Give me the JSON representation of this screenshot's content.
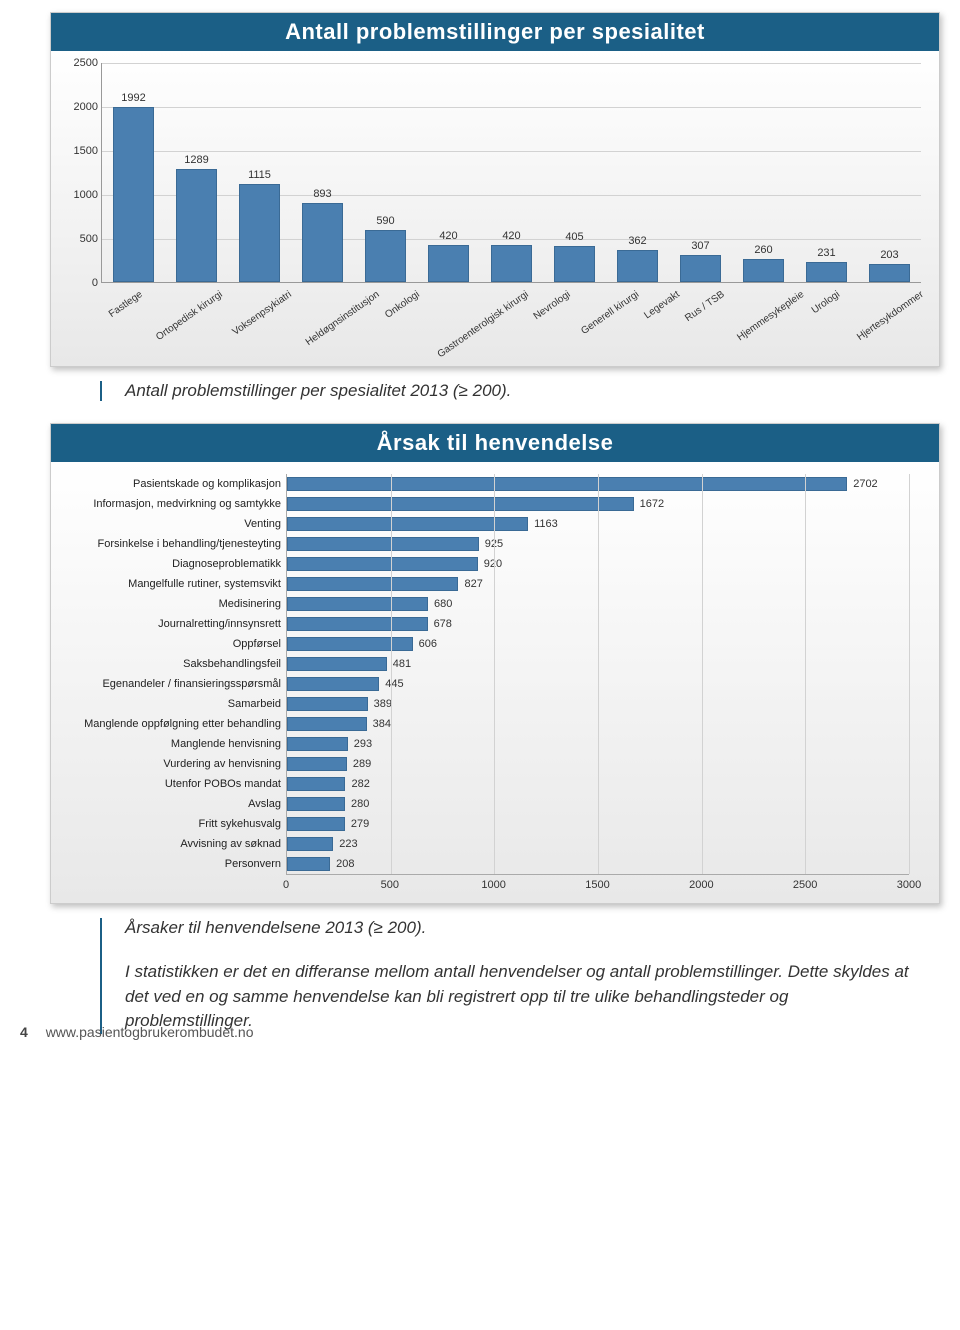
{
  "page": {
    "number": "4",
    "url": "www.pasientogbrukerombudet.no",
    "rule_color": "#1b5f86"
  },
  "chart1": {
    "type": "bar",
    "title": "Antall problemstillinger per spesialitet",
    "title_bg": "#1b5f86",
    "title_color": "#ffffff",
    "title_fontsize": 22,
    "bar_color": "#4a7fb0",
    "bar_border": "#3a6a95",
    "grid_color": "#d2d2d2",
    "background_gradient": [
      "#ffffff",
      "#e8e8e8"
    ],
    "label_fontsize": 11,
    "ylim": [
      0,
      2500
    ],
    "ytick_step": 500,
    "yticks": [
      0,
      500,
      1000,
      1500,
      2000,
      2500
    ],
    "categories": [
      "Fastlege",
      "Ortopedisk kirurgi",
      "Voksenpsykiatri",
      "Heldøgnsinstitusjon",
      "Onkologi",
      "Gastroenterolgisk kirurgi",
      "Nevrologi",
      "Generell kirurgi",
      "Legevakt",
      "Rus / TSB",
      "Hjemmesykepleie",
      "Urologi",
      "Hjertesykdommer"
    ],
    "values": [
      1992,
      1289,
      1115,
      893,
      590,
      420,
      420,
      405,
      362,
      307,
      260,
      231,
      203
    ],
    "caption": "Antall problemstillinger per spesialitet 2013 (≥ 200)."
  },
  "chart2": {
    "type": "horizontal-bar",
    "title": "Årsak til henvendelse",
    "title_bg": "#1b5f86",
    "title_color": "#ffffff",
    "title_fontsize": 22,
    "bar_color": "#4a7fb0",
    "bar_border": "#3a6a95",
    "grid_color": "#d2d2d2",
    "background_gradient": [
      "#ffffff",
      "#e8e8e8"
    ],
    "label_fontsize": 11,
    "xlim": [
      0,
      3000
    ],
    "xtick_step": 500,
    "xticks": [
      0,
      500,
      1000,
      1500,
      2000,
      2500,
      3000
    ],
    "categories": [
      "Pasientskade og komplikasjon",
      "Informasjon, medvirkning og samtykke",
      "Venting",
      "Forsinkelse i behandling/tjenesteyting",
      "Diagnoseproblematikk",
      "Mangelfulle rutiner, systemsvikt",
      "Medisinering",
      "Journalretting/innsynsrett",
      "Oppførsel",
      "Saksbehandlingsfeil",
      "Egenandeler / finansieringsspørsmål",
      "Samarbeid",
      "Manglende oppfølgning etter behandling",
      "Manglende henvisning",
      "Vurdering av henvisning",
      "Utenfor POBOs mandat",
      "Avslag",
      "Fritt sykehusvalg",
      "Avvisning av søknad",
      "Personvern"
    ],
    "values": [
      2702,
      1672,
      1163,
      925,
      920,
      827,
      680,
      678,
      606,
      481,
      445,
      389,
      384,
      293,
      289,
      282,
      280,
      279,
      223,
      208
    ],
    "caption": "Årsaker til henvendelsene 2013 (≥ 200).",
    "body": "I statistikken er det en differanse mellom antall henvendelser og antall problem­stillinger. Dette skyldes at det ved en og samme henvendelse kan bli registrert opp til tre ulike behandlingsteder og problemstillinger."
  }
}
